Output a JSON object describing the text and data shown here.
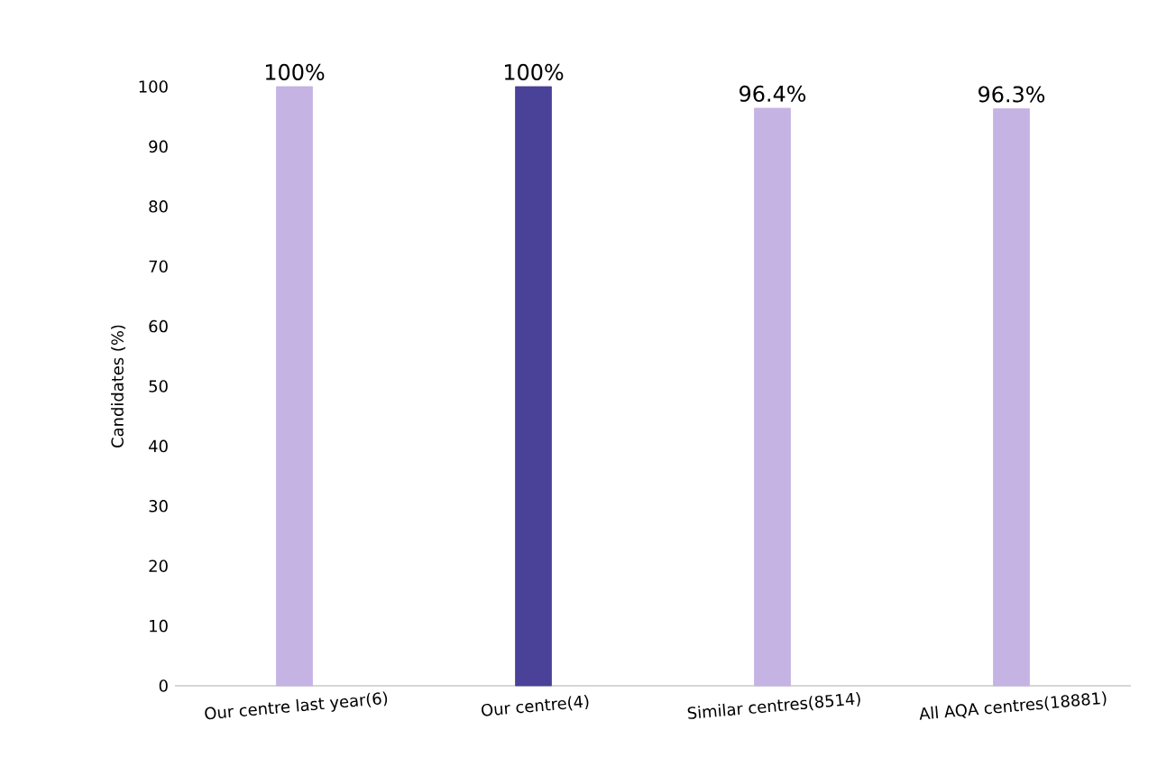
{
  "chart_data": {
    "type": "bar",
    "categories": [
      "Our centre last year(6)",
      "Our centre(4)",
      "Similar centres(8514)",
      "All AQA centres(18881)"
    ],
    "values": [
      100,
      100,
      96.4,
      96.3
    ],
    "value_labels": [
      "100%",
      "100%",
      "96.4%",
      "96.3%"
    ],
    "colors": [
      "#c4b3e3",
      "#4a4199",
      "#c4b3e3",
      "#c4b3e3"
    ],
    "ylabel": "Candidates (%)",
    "ylim": [
      0,
      100
    ],
    "yticks": [
      0,
      10,
      20,
      30,
      40,
      50,
      60,
      70,
      80,
      90,
      100
    ]
  }
}
